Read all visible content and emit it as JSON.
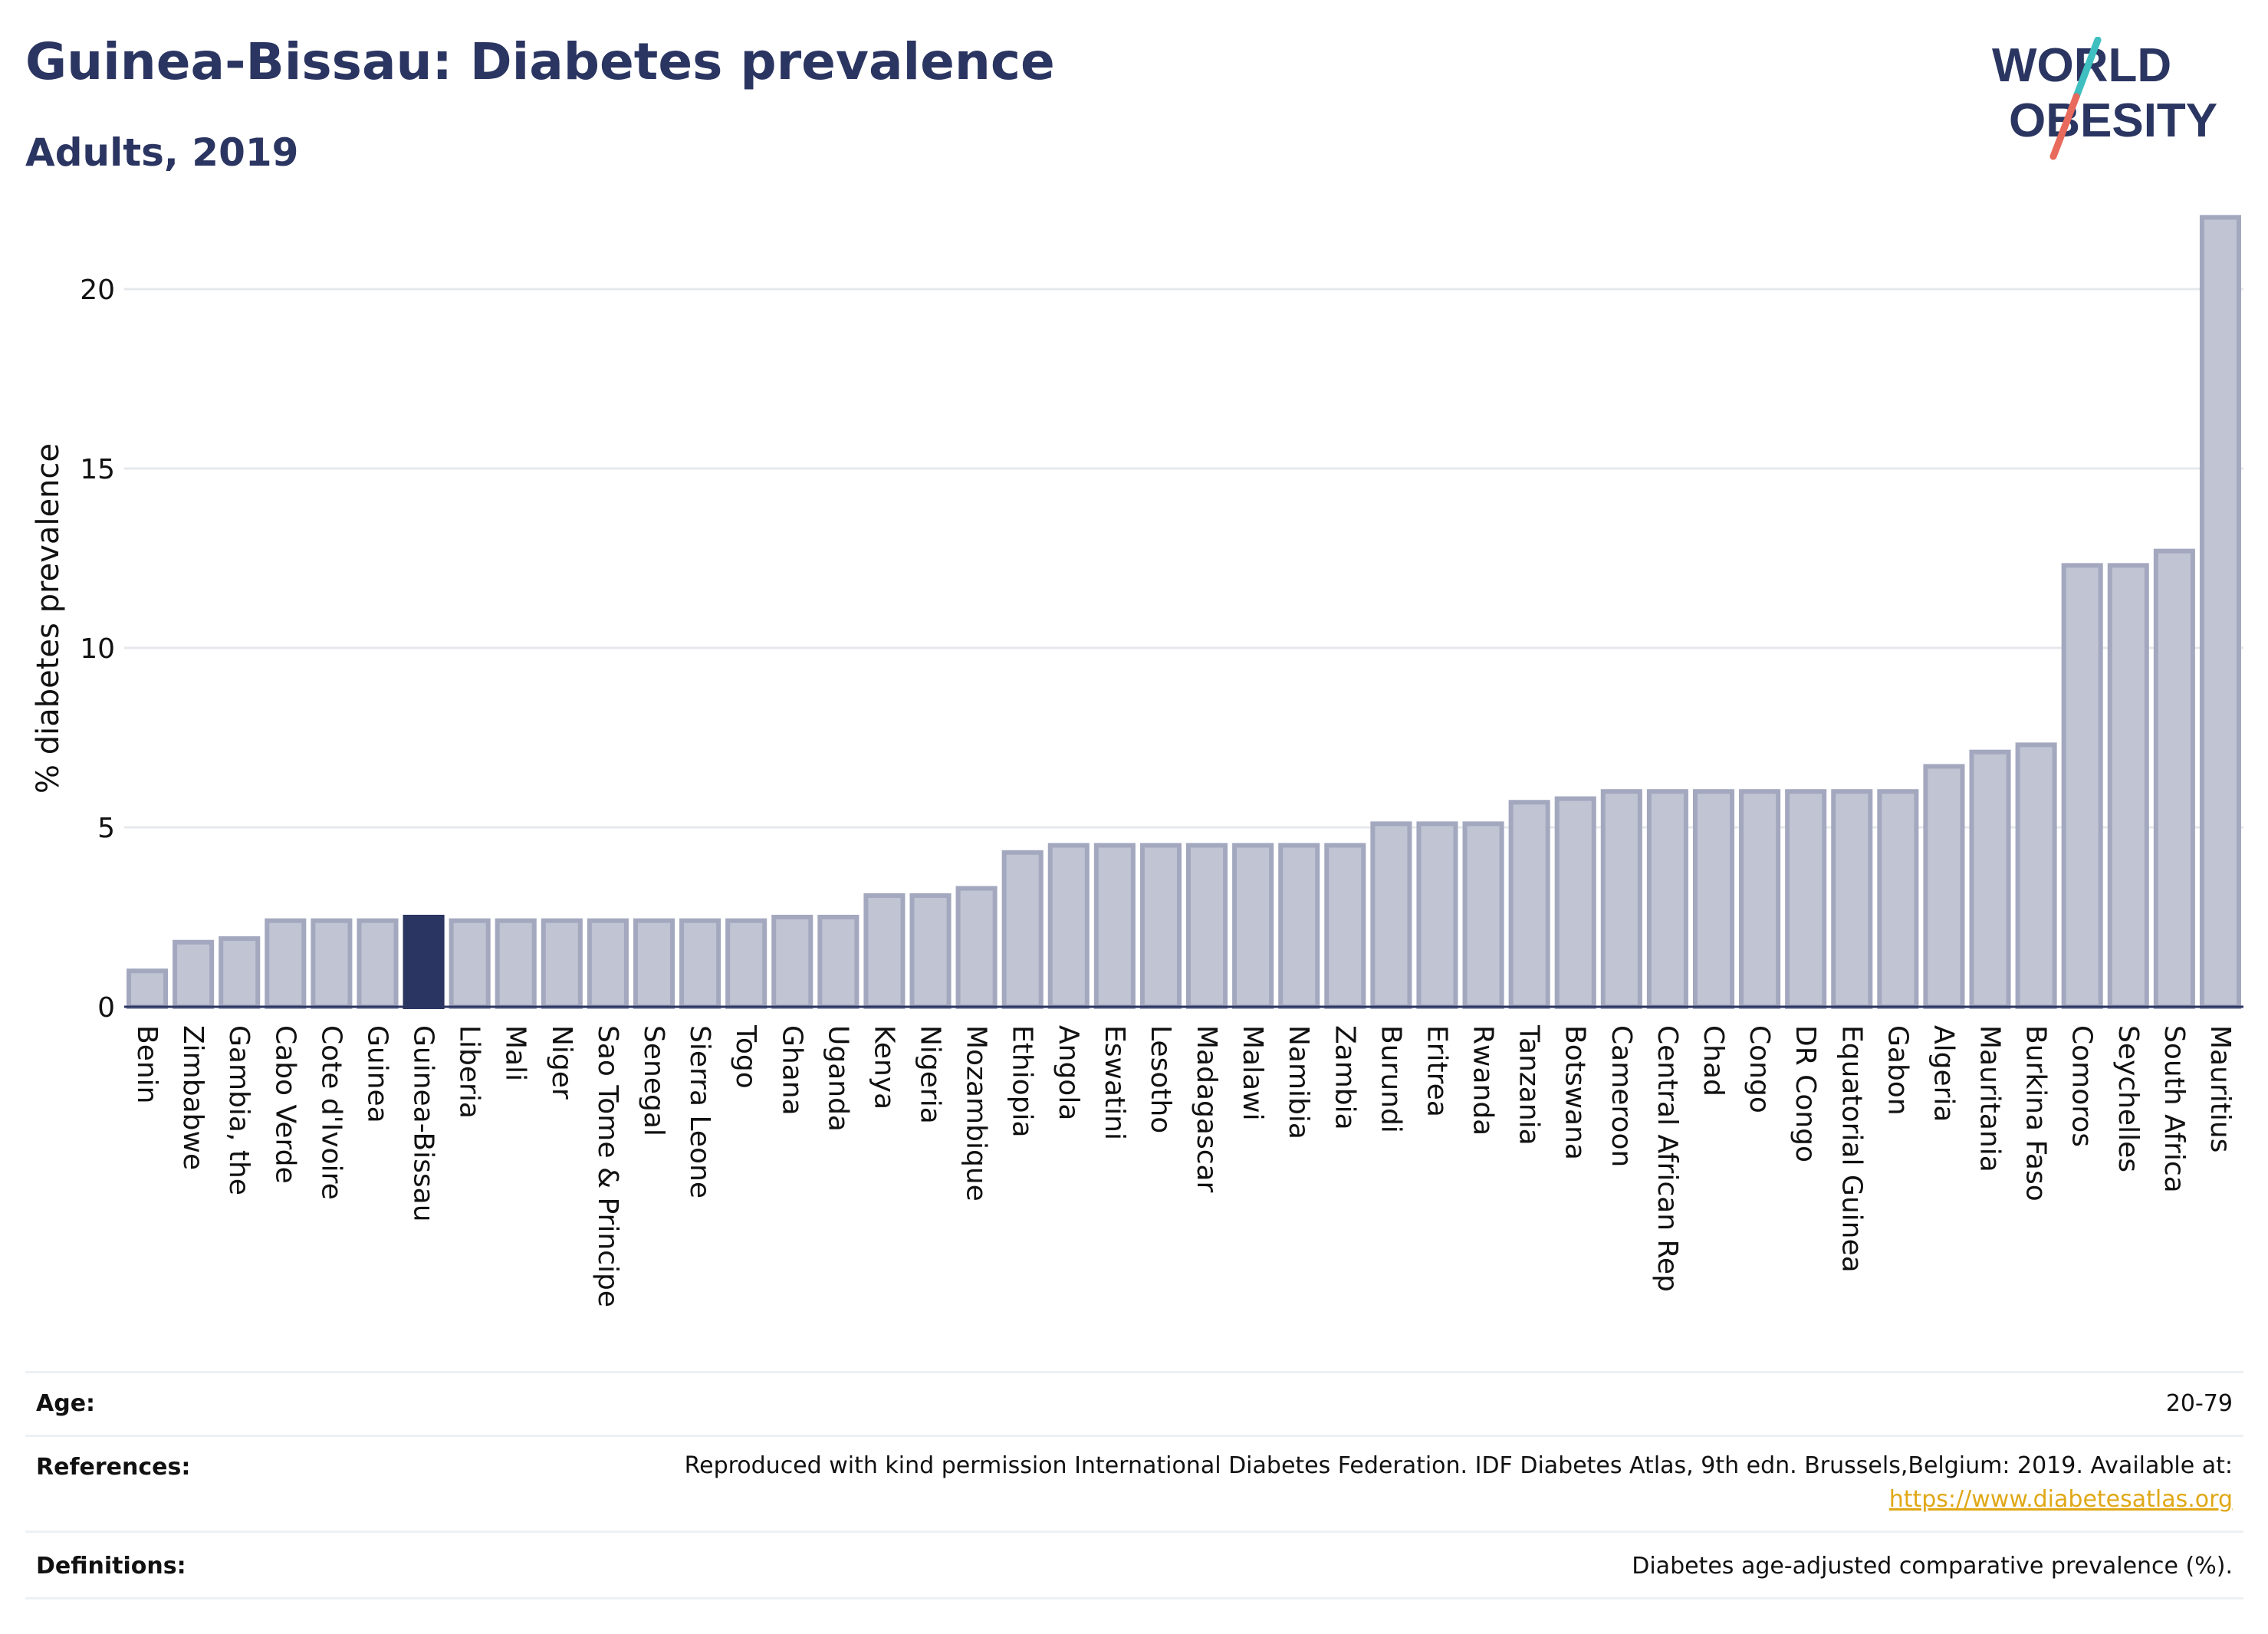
{
  "header": {
    "title": "Guinea-Bissau: Diabetes prevalence",
    "subtitle": "Adults, 2019",
    "logo_line1": "WORLD",
    "logo_line2": "OBESITY"
  },
  "colors": {
    "bar": "#c0c4d3",
    "bar_stroke": "#a3a8bf",
    "highlight": "#2b3561",
    "gridline": "#e6e8ec",
    "text": "#2b3561",
    "logo_accent_teal": "#3fbfbf",
    "logo_accent_red": "#e86a5c",
    "link": "#e0a817"
  },
  "chart_data": {
    "type": "bar",
    "ylabel": "% diabetes prevalence",
    "ylim": [
      0,
      22.5
    ],
    "yticks": [
      0,
      5,
      10,
      15,
      20
    ],
    "grid": true,
    "highlight": "Guinea-Bissau",
    "categories": [
      "Benin",
      "Zimbabwe",
      "Gambia, the",
      "Cabo Verde",
      "Cote d'Ivoire",
      "Guinea",
      "Guinea-Bissau",
      "Liberia",
      "Mali",
      "Niger",
      "Sao Tome & Principe",
      "Senegal",
      "Sierra Leone",
      "Togo",
      "Ghana",
      "Uganda",
      "Kenya",
      "Nigeria",
      "Mozambique",
      "Ethiopia",
      "Angola",
      "Eswatini",
      "Lesotho",
      "Madagascar",
      "Malawi",
      "Namibia",
      "Zambia",
      "Burundi",
      "Eritrea",
      "Rwanda",
      "Tanzania",
      "Botswana",
      "Cameroon",
      "Central African Rep",
      "Chad",
      "Congo",
      "DR Congo",
      "Equatorial Guinea",
      "Gabon",
      "Algeria",
      "Mauritania",
      "Burkina Faso",
      "Comoros",
      "Seychelles",
      "South Africa",
      "Mauritius"
    ],
    "values": [
      1.0,
      1.8,
      1.9,
      2.4,
      2.4,
      2.4,
      2.5,
      2.4,
      2.4,
      2.4,
      2.4,
      2.4,
      2.4,
      2.4,
      2.5,
      2.5,
      3.1,
      3.1,
      3.3,
      4.3,
      4.5,
      4.5,
      4.5,
      4.5,
      4.5,
      4.5,
      4.5,
      5.1,
      5.1,
      5.1,
      5.7,
      5.8,
      6.0,
      6.0,
      6.0,
      6.0,
      6.0,
      6.0,
      6.0,
      6.7,
      7.1,
      7.3,
      12.3,
      12.3,
      12.7,
      22.0
    ]
  },
  "meta": {
    "age_label": "Age:",
    "age_value": "20-79",
    "references_label": "References:",
    "references_value": "Reproduced with kind permission International Diabetes Federation. IDF Diabetes Atlas, 9th edn. Brussels,Belgium: 2019. Available at:",
    "references_link": "https://www.diabetesatlas.org",
    "definitions_label": "Definitions:",
    "definitions_value": "Diabetes age-adjusted comparative prevalence (%)."
  }
}
